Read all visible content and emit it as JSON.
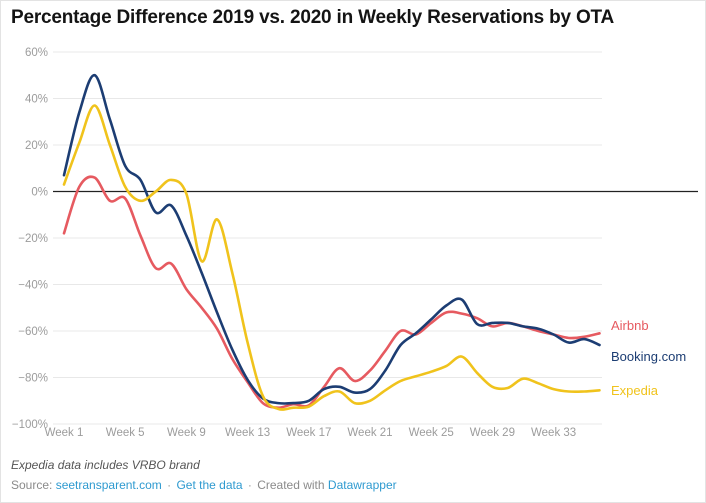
{
  "title": "Percentage Difference 2019 vs. 2020 in Weekly Reservations by OTA",
  "footer": {
    "note": "Expedia data includes VRBO brand",
    "source_prefix": "Source:",
    "source_link": "seetransparent.com",
    "sep": "·",
    "get_data_link": "Get the data",
    "created_with": "Created with",
    "datawrapper_link": "Datawrapper",
    "link_color": "#2e9ad0",
    "text_color": "#8b8b8b"
  },
  "chart_data": {
    "type": "line",
    "title": "Percentage Difference 2019 vs. 2020 in Weekly Reservations by OTA",
    "xlabel": "",
    "ylabel": "",
    "ylim": [
      -100,
      60
    ],
    "grid": "horizontal",
    "legend_position": "right-of-line-ends",
    "y_ticks": [
      {
        "label": "60%",
        "value": 60
      },
      {
        "label": "40%",
        "value": 40
      },
      {
        "label": "20%",
        "value": 20
      },
      {
        "label": "0%",
        "value": 0
      },
      {
        "label": "−20%",
        "value": -20
      },
      {
        "label": "−40%",
        "value": -40
      },
      {
        "label": "−60%",
        "value": -60
      },
      {
        "label": "−80%",
        "value": -80
      },
      {
        "label": "−100%",
        "value": -100
      }
    ],
    "x_ticks": [
      {
        "label": "Week 1",
        "week": 1
      },
      {
        "label": "Week 5",
        "week": 5
      },
      {
        "label": "Week 9",
        "week": 9
      },
      {
        "label": "Week 13",
        "week": 13
      },
      {
        "label": "Week 17",
        "week": 17
      },
      {
        "label": "Week 21",
        "week": 21
      },
      {
        "label": "Week 25",
        "week": 25
      },
      {
        "label": "Week 29",
        "week": 29
      },
      {
        "label": "Week 33",
        "week": 33
      }
    ],
    "weeks": [
      1,
      2,
      3,
      4,
      5,
      6,
      7,
      8,
      9,
      10,
      11,
      12,
      13,
      14,
      15,
      16,
      17,
      18,
      19,
      20,
      21,
      22,
      23,
      24,
      25,
      26,
      27,
      28,
      29,
      30,
      31,
      32,
      33,
      34,
      35,
      36
    ],
    "series": [
      {
        "name": "Airbnb",
        "color": "#e65a60",
        "values": [
          -18,
          2,
          6,
          -4,
          -3,
          -19,
          -33,
          -31,
          -42,
          -50,
          -59,
          -72,
          -82,
          -91,
          -93,
          -91.5,
          -92,
          -84,
          -76,
          -81.5,
          -77,
          -68.5,
          -60,
          -61.5,
          -56.5,
          -52,
          -52.5,
          -54.5,
          -58,
          -56.5,
          -58,
          -60,
          -61.5,
          -63,
          -62.5,
          -61
        ]
      },
      {
        "name": "Booking.com",
        "color": "#1c3d73",
        "values": [
          7,
          34,
          50,
          31,
          11,
          5,
          -9,
          -6,
          -19,
          -35,
          -52,
          -68,
          -81,
          -89,
          -91,
          -91,
          -90,
          -85,
          -84,
          -86.5,
          -85,
          -77,
          -66,
          -61,
          -55,
          -49,
          -46.5,
          -57,
          -56.5,
          -56.5,
          -58,
          -59,
          -61.5,
          -65,
          -63.5,
          -66
        ]
      },
      {
        "name": "Expedia",
        "color": "#f0c31c",
        "values": [
          3,
          21,
          37,
          20,
          2,
          -4,
          0,
          5,
          -1,
          -30,
          -12,
          -35,
          -65,
          -88,
          -93.5,
          -93,
          -92.5,
          -88,
          -86,
          -91,
          -90,
          -85.5,
          -81.5,
          -79.5,
          -77.5,
          -75,
          -71,
          -78,
          -84,
          -84.5,
          -80.5,
          -82.5,
          -85,
          -86,
          -86,
          -85.5
        ]
      }
    ],
    "colors": {
      "gridline": "#e8e8e8",
      "zero_line": "#222222",
      "tick_label": "#9c9c9c"
    }
  }
}
